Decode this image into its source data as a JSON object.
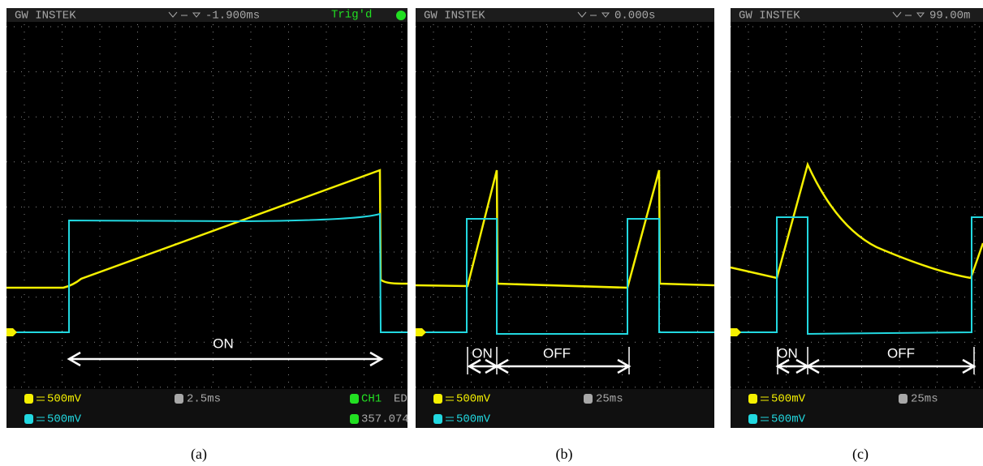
{
  "panels": [
    {
      "header": {
        "brand": "GW INSTEK",
        "offset": "-1.900ms",
        "status": "Trig'd"
      },
      "footer": {
        "ch1": "500mV",
        "timebase": "2.5ms",
        "trigger_source": "CH1",
        "trigger_mode": "ED",
        "ch2": "500mV",
        "frequency": "357.074"
      },
      "annotations": [
        "ON"
      ],
      "caption": "(a)"
    },
    {
      "header": {
        "brand": "GW INSTEK",
        "offset": "0.000s"
      },
      "footer": {
        "ch1": "500mV",
        "timebase": "25ms",
        "ch2": "500mV"
      },
      "annotations": [
        "ON",
        "OFF"
      ],
      "caption": "(b)"
    },
    {
      "header": {
        "brand": "GW INSTEK",
        "offset": "99.00m"
      },
      "footer": {
        "ch1": "500mV",
        "timebase": "25ms",
        "ch2": "500mV"
      },
      "annotations": [
        "ON",
        "OFF"
      ],
      "caption": "(c)"
    }
  ]
}
